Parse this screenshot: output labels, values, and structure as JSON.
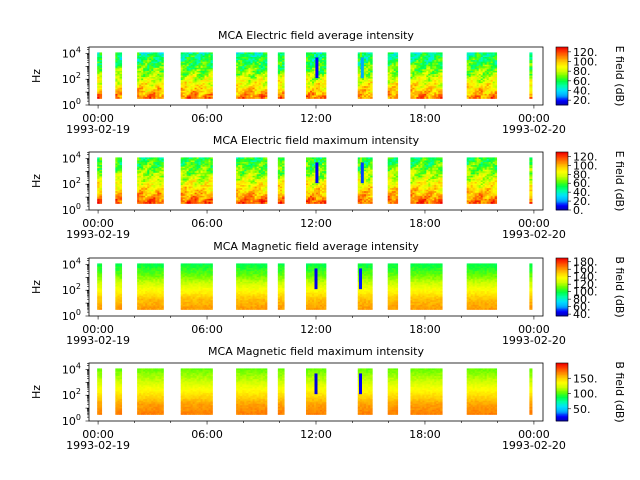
{
  "figure": {
    "background": "#ffffff",
    "colormap": [
      "#0000aa",
      "#0000ff",
      "#00aaff",
      "#00e0ff",
      "#00ffaa",
      "#00ff44",
      "#66ff00",
      "#ccff00",
      "#ffff00",
      "#ffcc00",
      "#ff8800",
      "#ff4400",
      "#ee0000"
    ]
  },
  "chart_data": [
    {
      "type": "heatmap",
      "title": "MCA  Electric field average intensity",
      "ylabel": "Hz",
      "yscale": "log",
      "ylim": [
        1,
        31623
      ],
      "y_ticks": [
        {
          "value": 1,
          "label": "10^0",
          "base": "10",
          "exp": "0"
        },
        {
          "value": 100,
          "label": "10^2",
          "base": "10",
          "exp": "2"
        },
        {
          "value": 10000,
          "label": "10^4",
          "base": "10",
          "exp": "4"
        }
      ],
      "x_ticks": [
        {
          "hour": 0,
          "label": "00:00",
          "date": "1993-02-19"
        },
        {
          "hour": 6,
          "label": "06:00",
          "date": ""
        },
        {
          "hour": 12,
          "label": "12:00",
          "date": ""
        },
        {
          "hour": 18,
          "label": "18:00",
          "date": ""
        },
        {
          "hour": 24,
          "label": "00:00",
          "date": "1993-02-20"
        }
      ],
      "xlim_hours": [
        -0.5,
        24.5
      ],
      "data_intervals_hours": [
        [
          -0.05,
          0.2
        ],
        [
          0.95,
          1.3
        ],
        [
          2.15,
          3.6
        ],
        [
          4.55,
          6.3
        ],
        [
          7.6,
          9.3
        ],
        [
          9.9,
          10.25
        ],
        [
          11.45,
          12.55
        ],
        [
          14.3,
          15.1
        ],
        [
          15.95,
          16.5
        ],
        [
          17.2,
          18.95
        ],
        [
          20.3,
          21.95
        ],
        [
          23.75,
          23.9
        ]
      ],
      "spectrum_profile": "electric",
      "value_range": [
        20,
        125
      ],
      "colorbar": {
        "label": "E field (dB)",
        "range": [
          10,
          130
        ],
        "ticks": [
          {
            "value": 20,
            "label": "20."
          },
          {
            "value": 40,
            "label": "40."
          },
          {
            "value": 60,
            "label": "60."
          },
          {
            "value": 80,
            "label": "80."
          },
          {
            "value": 100,
            "label": "100."
          },
          {
            "value": 120,
            "label": "120."
          }
        ]
      },
      "dropouts": [
        {
          "hour": 12.05,
          "value": 20
        },
        {
          "hour": 14.55,
          "value": 30
        }
      ]
    },
    {
      "type": "heatmap",
      "title": "MCA  Electric field maximum intensity",
      "ylabel": "Hz",
      "yscale": "log",
      "ylim": [
        1,
        31623
      ],
      "y_ticks": [
        {
          "value": 1,
          "label": "10^0",
          "base": "10",
          "exp": "0"
        },
        {
          "value": 100,
          "label": "10^2",
          "base": "10",
          "exp": "2"
        },
        {
          "value": 10000,
          "label": "10^4",
          "base": "10",
          "exp": "4"
        }
      ],
      "x_ticks": [
        {
          "hour": 0,
          "label": "00:00",
          "date": "1993-02-19"
        },
        {
          "hour": 6,
          "label": "06:00",
          "date": ""
        },
        {
          "hour": 12,
          "label": "12:00",
          "date": ""
        },
        {
          "hour": 18,
          "label": "18:00",
          "date": ""
        },
        {
          "hour": 24,
          "label": "00:00",
          "date": "1993-02-20"
        }
      ],
      "xlim_hours": [
        -0.5,
        24.5
      ],
      "data_intervals_hours": [
        [
          -0.05,
          0.2
        ],
        [
          0.95,
          1.3
        ],
        [
          2.15,
          3.6
        ],
        [
          4.55,
          6.3
        ],
        [
          7.6,
          9.3
        ],
        [
          9.9,
          10.25
        ],
        [
          11.45,
          12.55
        ],
        [
          14.3,
          15.1
        ],
        [
          15.95,
          16.5
        ],
        [
          17.2,
          18.95
        ],
        [
          20.3,
          21.95
        ],
        [
          23.75,
          23.9
        ]
      ],
      "spectrum_profile": "electric",
      "value_range": [
        20,
        130
      ],
      "colorbar": {
        "label": "E field (dB)",
        "range": [
          0,
          130
        ],
        "ticks": [
          {
            "value": 0,
            "label": "0."
          },
          {
            "value": 20,
            "label": "20."
          },
          {
            "value": 40,
            "label": "40."
          },
          {
            "value": 60,
            "label": "60."
          },
          {
            "value": 80,
            "label": "80."
          },
          {
            "value": 100,
            "label": "100."
          },
          {
            "value": 120,
            "label": "120."
          }
        ]
      },
      "dropouts": [
        {
          "hour": 12.05,
          "value": 10
        },
        {
          "hour": 14.55,
          "value": 15
        }
      ]
    },
    {
      "type": "heatmap",
      "title": "MCA  Magnetic field average intensity",
      "ylabel": "Hz",
      "yscale": "log",
      "ylim": [
        1,
        31623
      ],
      "y_ticks": [
        {
          "value": 1,
          "label": "10^0",
          "base": "10",
          "exp": "0"
        },
        {
          "value": 100,
          "label": "10^2",
          "base": "10",
          "exp": "2"
        },
        {
          "value": 10000,
          "label": "10^4",
          "base": "10",
          "exp": "4"
        }
      ],
      "x_ticks": [
        {
          "hour": 0,
          "label": "00:00",
          "date": "1993-02-19"
        },
        {
          "hour": 6,
          "label": "06:00",
          "date": ""
        },
        {
          "hour": 12,
          "label": "12:00",
          "date": ""
        },
        {
          "hour": 18,
          "label": "18:00",
          "date": ""
        },
        {
          "hour": 24,
          "label": "00:00",
          "date": "1993-02-20"
        }
      ],
      "xlim_hours": [
        -0.5,
        24.5
      ],
      "data_intervals_hours": [
        [
          -0.05,
          0.2
        ],
        [
          0.95,
          1.3
        ],
        [
          2.15,
          3.6
        ],
        [
          4.55,
          6.3
        ],
        [
          7.6,
          9.3
        ],
        [
          9.9,
          10.25
        ],
        [
          11.45,
          12.55
        ],
        [
          14.3,
          15.1
        ],
        [
          15.95,
          16.5
        ],
        [
          17.2,
          18.95
        ],
        [
          20.3,
          21.95
        ],
        [
          23.75,
          23.9
        ]
      ],
      "spectrum_profile": "magnetic",
      "value_range": [
        75,
        170
      ],
      "colorbar": {
        "label": "B field (dB)",
        "range": [
          35,
          190
        ],
        "ticks": [
          {
            "value": 40,
            "label": "40."
          },
          {
            "value": 60,
            "label": "60."
          },
          {
            "value": 80,
            "label": "80."
          },
          {
            "value": 100,
            "label": "100."
          },
          {
            "value": 120,
            "label": "120."
          },
          {
            "value": 140,
            "label": "140."
          },
          {
            "value": 160,
            "label": "160."
          },
          {
            "value": 180,
            "label": "180."
          }
        ]
      },
      "dropouts": [
        {
          "hour": 12.0,
          "value": 45
        },
        {
          "hour": 14.45,
          "value": 50
        }
      ]
    },
    {
      "type": "heatmap",
      "title": "MCA  Magnetic field maximum intensity",
      "ylabel": "Hz",
      "yscale": "log",
      "ylim": [
        1,
        31623
      ],
      "y_ticks": [
        {
          "value": 1,
          "label": "10^0",
          "base": "10",
          "exp": "0"
        },
        {
          "value": 100,
          "label": "10^2",
          "base": "10",
          "exp": "2"
        },
        {
          "value": 10000,
          "label": "10^4",
          "base": "10",
          "exp": "4"
        }
      ],
      "x_ticks": [
        {
          "hour": 0,
          "label": "00:00",
          "date": "1993-02-19"
        },
        {
          "hour": 6,
          "label": "06:00",
          "date": ""
        },
        {
          "hour": 12,
          "label": "12:00",
          "date": ""
        },
        {
          "hour": 18,
          "label": "18:00",
          "date": ""
        },
        {
          "hour": 24,
          "label": "00:00",
          "date": "1993-02-20"
        }
      ],
      "xlim_hours": [
        -0.5,
        24.5
      ],
      "data_intervals_hours": [
        [
          -0.05,
          0.2
        ],
        [
          0.95,
          1.3
        ],
        [
          2.15,
          3.6
        ],
        [
          4.55,
          6.3
        ],
        [
          7.6,
          9.3
        ],
        [
          9.9,
          10.25
        ],
        [
          11.45,
          12.55
        ],
        [
          14.3,
          15.1
        ],
        [
          15.95,
          16.5
        ],
        [
          17.2,
          18.95
        ],
        [
          20.3,
          21.95
        ],
        [
          23.75,
          23.9
        ]
      ],
      "spectrum_profile": "magnetic",
      "value_range": [
        80,
        180
      ],
      "colorbar": {
        "label": "B field (dB)",
        "range": [
          10,
          200
        ],
        "ticks": [
          {
            "value": 50,
            "label": "50."
          },
          {
            "value": 100,
            "label": "100."
          },
          {
            "value": 150,
            "label": "150."
          }
        ]
      },
      "dropouts": [
        {
          "hour": 12.0,
          "value": 20
        },
        {
          "hour": 14.45,
          "value": 25
        }
      ]
    }
  ]
}
